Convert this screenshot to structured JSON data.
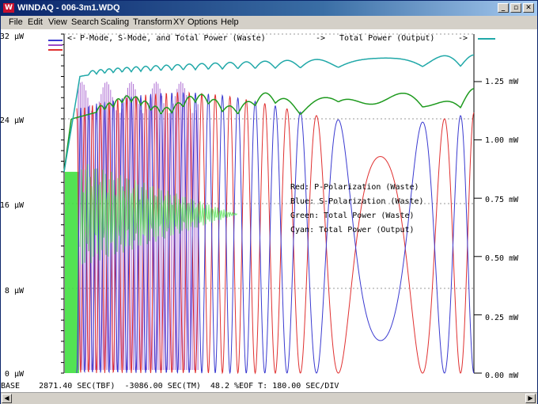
{
  "window": {
    "title": "WINDAQ - 006-3m1.WDQ",
    "icon_text": "W",
    "minimize_glyph": "_",
    "restore_glyph": "▫",
    "close_glyph": "✕"
  },
  "menu": [
    "File",
    "Edit",
    "View",
    "Search",
    "Scaling",
    "Transform",
    "XY",
    "Options",
    "Help"
  ],
  "chart": {
    "header_left": "P-Mode, S-Mode, and Total Power (Waste)",
    "header_right": "Total Power (Output)",
    "left_axis_ticks": [
      "32 µW",
      "24 µW",
      "16 µW",
      "8 µW",
      "0 µW"
    ],
    "right_axis_ticks": [
      "1.25 mW",
      "1.00 mW",
      "0.75 mW",
      "0.50 mW",
      "0.25 mW",
      "0.00 mW"
    ],
    "legend": [
      "Red: P-Polarization (Waste)",
      "Blue: S-Polarization (Waste)",
      "Green: Total Power (Waste)",
      "Cyan: Total Power (Output)"
    ],
    "colors": {
      "red": "#e03030",
      "blue": "#3a3ad0",
      "green": "#1e9a1e",
      "light_green": "#40e040",
      "cyan": "#20a8a8",
      "purple": "#9a4ac8"
    }
  },
  "chart_data": {
    "type": "line",
    "left_ylim": [
      0,
      32
    ],
    "left_unit": "µW",
    "right_ylim": [
      0,
      1.25
    ],
    "right_unit": "mW",
    "series": [
      {
        "name": "Red: P-Polarization (Waste)",
        "color": "#e03030",
        "behavior": "oscillation between ~0 and ~25 µW with period increasing over time"
      },
      {
        "name": "Blue: S-Polarization (Waste)",
        "color": "#3a3ad0",
        "behavior": "oscillation between ~0 and ~25 µW, out of phase with red"
      },
      {
        "name": "Green: Total Power (Waste)",
        "color": "#1e9a1e",
        "levels": [
          19,
          25,
          25.5,
          26.5
        ]
      },
      {
        "name": "Cyan: Total Power (Output)",
        "color": "#20a8a8",
        "levels": [
          19,
          28,
          29,
          29.5
        ]
      }
    ]
  },
  "status_bar": {
    "text": "BASE    2871.40 SEC(TBF)  -3086.00 SEC(TM)  48.2 %EOF T: 180.00 SEC/DIV"
  },
  "scrollbar": {
    "left_arrow": "◀",
    "right_arrow": "▶"
  }
}
